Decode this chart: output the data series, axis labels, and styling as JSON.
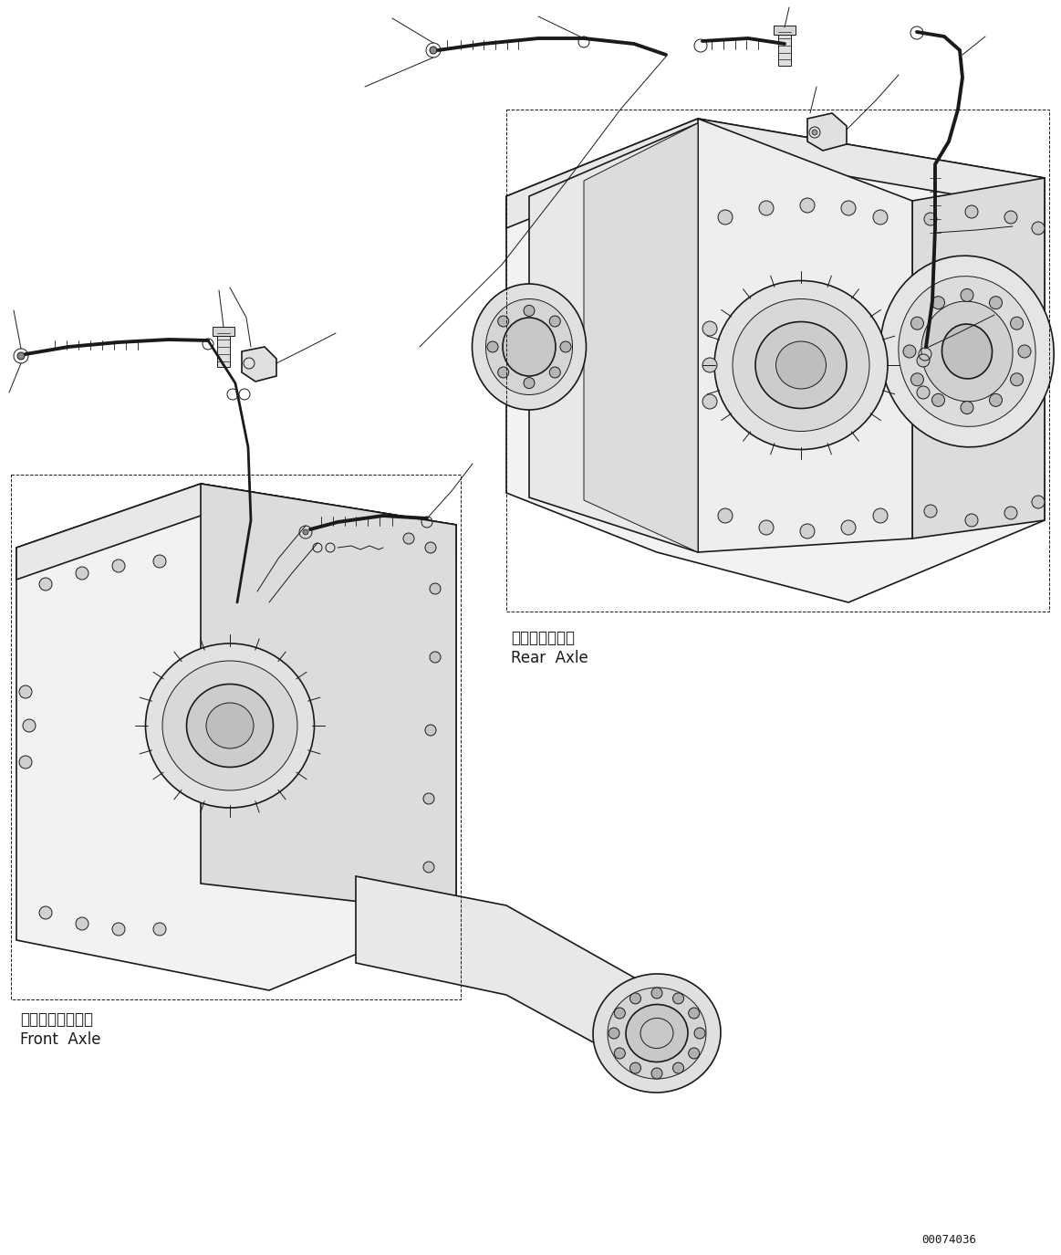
{
  "bg_color": "#ffffff",
  "line_color": "#1a1a1a",
  "text_color": "#1a1a1a",
  "part_number": "00074036",
  "rear_axle_label_jp": "リヤーアクスル",
  "rear_axle_label_en": "Rear  Axle",
  "front_axle_label_jp": "フロントアクスル",
  "front_axle_label_en": "Front  Axle",
  "fig_width": 11.63,
  "fig_height": 13.75,
  "dpi": 100
}
